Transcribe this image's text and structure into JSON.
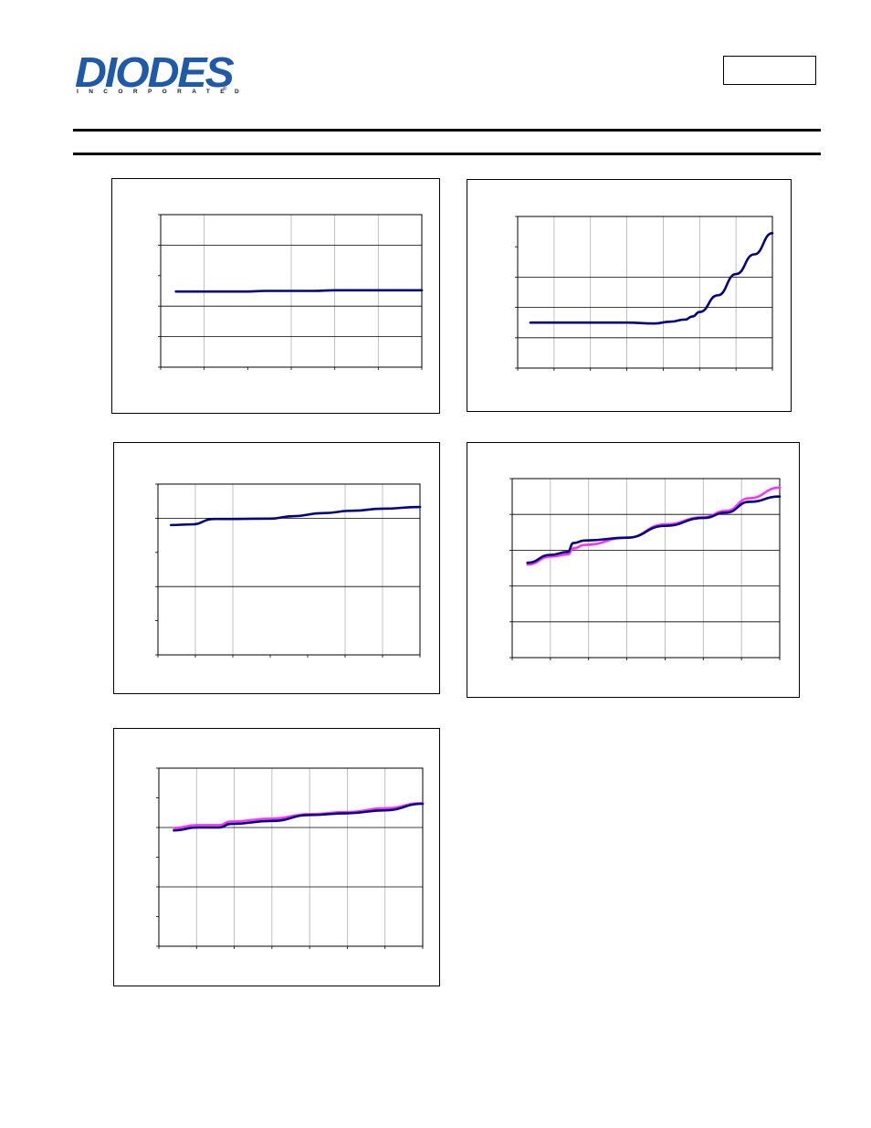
{
  "header": {
    "logo_word": "DIODES",
    "logo_sub": "INCORPORATED",
    "logo_reg": "®",
    "part_number": ""
  },
  "colors": {
    "logo_blue": "#1e5aa8",
    "series_navy": "#000080",
    "series_magenta": "#ff33ff",
    "grid": "#000000"
  },
  "chart_data": [
    {
      "type": "line",
      "title": "",
      "xlabel": "",
      "ylabel": "",
      "xlim": [
        0,
        6
      ],
      "ylim": [
        0,
        5
      ],
      "x_gridlines": [
        1,
        3,
        4,
        5
      ],
      "y_gridlines": [
        1,
        2,
        4
      ],
      "x_ticks": [
        0,
        1,
        2,
        3,
        4,
        5,
        6
      ],
      "y_ticks": [
        0,
        1,
        2,
        3,
        4,
        5
      ],
      "series": [
        {
          "x": [
            0.35,
            2,
            2.4,
            3.5,
            4,
            6
          ],
          "y": [
            2.48,
            2.48,
            2.5,
            2.5,
            2.52,
            2.52
          ]
        }
      ]
    },
    {
      "type": "line",
      "title": "",
      "xlabel": "",
      "ylabel": "",
      "xlim": [
        0,
        7
      ],
      "ylim": [
        0,
        5
      ],
      "x_gridlines": [
        1,
        2,
        3,
        4,
        5,
        6
      ],
      "y_gridlines": [
        1,
        2,
        3
      ],
      "x_ticks": [
        0,
        1,
        2,
        3,
        4,
        5,
        6,
        7
      ],
      "y_ticks": [
        0,
        1,
        2,
        3,
        4,
        5
      ],
      "series": [
        {
          "x": [
            0.35,
            3,
            3.75,
            4.2,
            4.6,
            4.8,
            5,
            5.5,
            6,
            6.5,
            7
          ],
          "y": [
            1.5,
            1.5,
            1.47,
            1.53,
            1.6,
            1.7,
            1.85,
            2.4,
            3.1,
            3.75,
            4.45
          ]
        }
      ]
    },
    {
      "type": "line",
      "title": "",
      "xlabel": "",
      "ylabel": "",
      "xlim": [
        0,
        7
      ],
      "ylim": [
        0,
        5
      ],
      "x_gridlines": [
        1,
        2,
        5,
        6
      ],
      "y_gridlines": [
        2,
        4
      ],
      "x_ticks": [
        0,
        1,
        2,
        3,
        4,
        5,
        6,
        7
      ],
      "y_ticks": [
        0,
        1,
        2,
        3,
        4,
        5
      ],
      "series": [
        {
          "x": [
            0.35,
            0.9,
            1.5,
            2,
            3,
            3.6,
            4.4,
            5.2,
            6,
            7
          ],
          "y": [
            3.8,
            3.82,
            3.98,
            3.98,
            3.99,
            4.06,
            4.15,
            4.22,
            4.28,
            4.33
          ]
        }
      ]
    },
    {
      "type": "line",
      "title": "",
      "xlabel": "",
      "ylabel": "",
      "xlim": [
        0,
        7
      ],
      "ylim": [
        0,
        5
      ],
      "x_gridlines": [
        1,
        2,
        3,
        4,
        5,
        6
      ],
      "y_gridlines": [
        1,
        2,
        3,
        4
      ],
      "x_ticks": [
        0,
        1,
        2,
        3,
        4,
        5,
        6,
        7
      ],
      "y_ticks": [
        0,
        1,
        2,
        3,
        4,
        5
      ],
      "series": [
        {
          "x": [
            0.4,
            1,
            1.45,
            1.6,
            1.9,
            3,
            4,
            5,
            5.6,
            6.2,
            7
          ],
          "y": [
            2.65,
            2.87,
            2.95,
            3.2,
            3.27,
            3.35,
            3.68,
            3.9,
            4.05,
            4.35,
            4.5
          ]
        },
        {
          "x": [
            0.4,
            1,
            1.45,
            1.6,
            1.9,
            3,
            4,
            5,
            5.6,
            6.2,
            7
          ],
          "y": [
            2.6,
            2.82,
            2.88,
            3.05,
            3.15,
            3.35,
            3.72,
            3.92,
            4.1,
            4.45,
            4.75
          ]
        }
      ]
    },
    {
      "type": "line",
      "title": "",
      "xlabel": "",
      "ylabel": "",
      "xlim": [
        0,
        7
      ],
      "ylim": [
        0,
        6
      ],
      "x_gridlines": [
        1,
        2,
        3,
        4,
        5,
        6
      ],
      "y_gridlines": [
        2,
        4
      ],
      "x_ticks": [
        0,
        1,
        2,
        3,
        4,
        5,
        6,
        7
      ],
      "y_ticks": [
        0,
        1,
        2,
        3,
        4,
        5,
        6
      ],
      "series": [
        {
          "x": [
            0.4,
            1,
            1.6,
            1.9,
            3,
            4,
            5,
            6,
            7
          ],
          "y": [
            3.9,
            4.0,
            4.0,
            4.12,
            4.22,
            4.42,
            4.48,
            4.58,
            4.8
          ]
        },
        {
          "x": [
            0.4,
            1,
            1.6,
            1.9,
            3,
            4,
            5,
            6,
            7
          ],
          "y": [
            3.98,
            4.08,
            4.08,
            4.2,
            4.3,
            4.45,
            4.52,
            4.65,
            4.82
          ]
        }
      ]
    }
  ]
}
